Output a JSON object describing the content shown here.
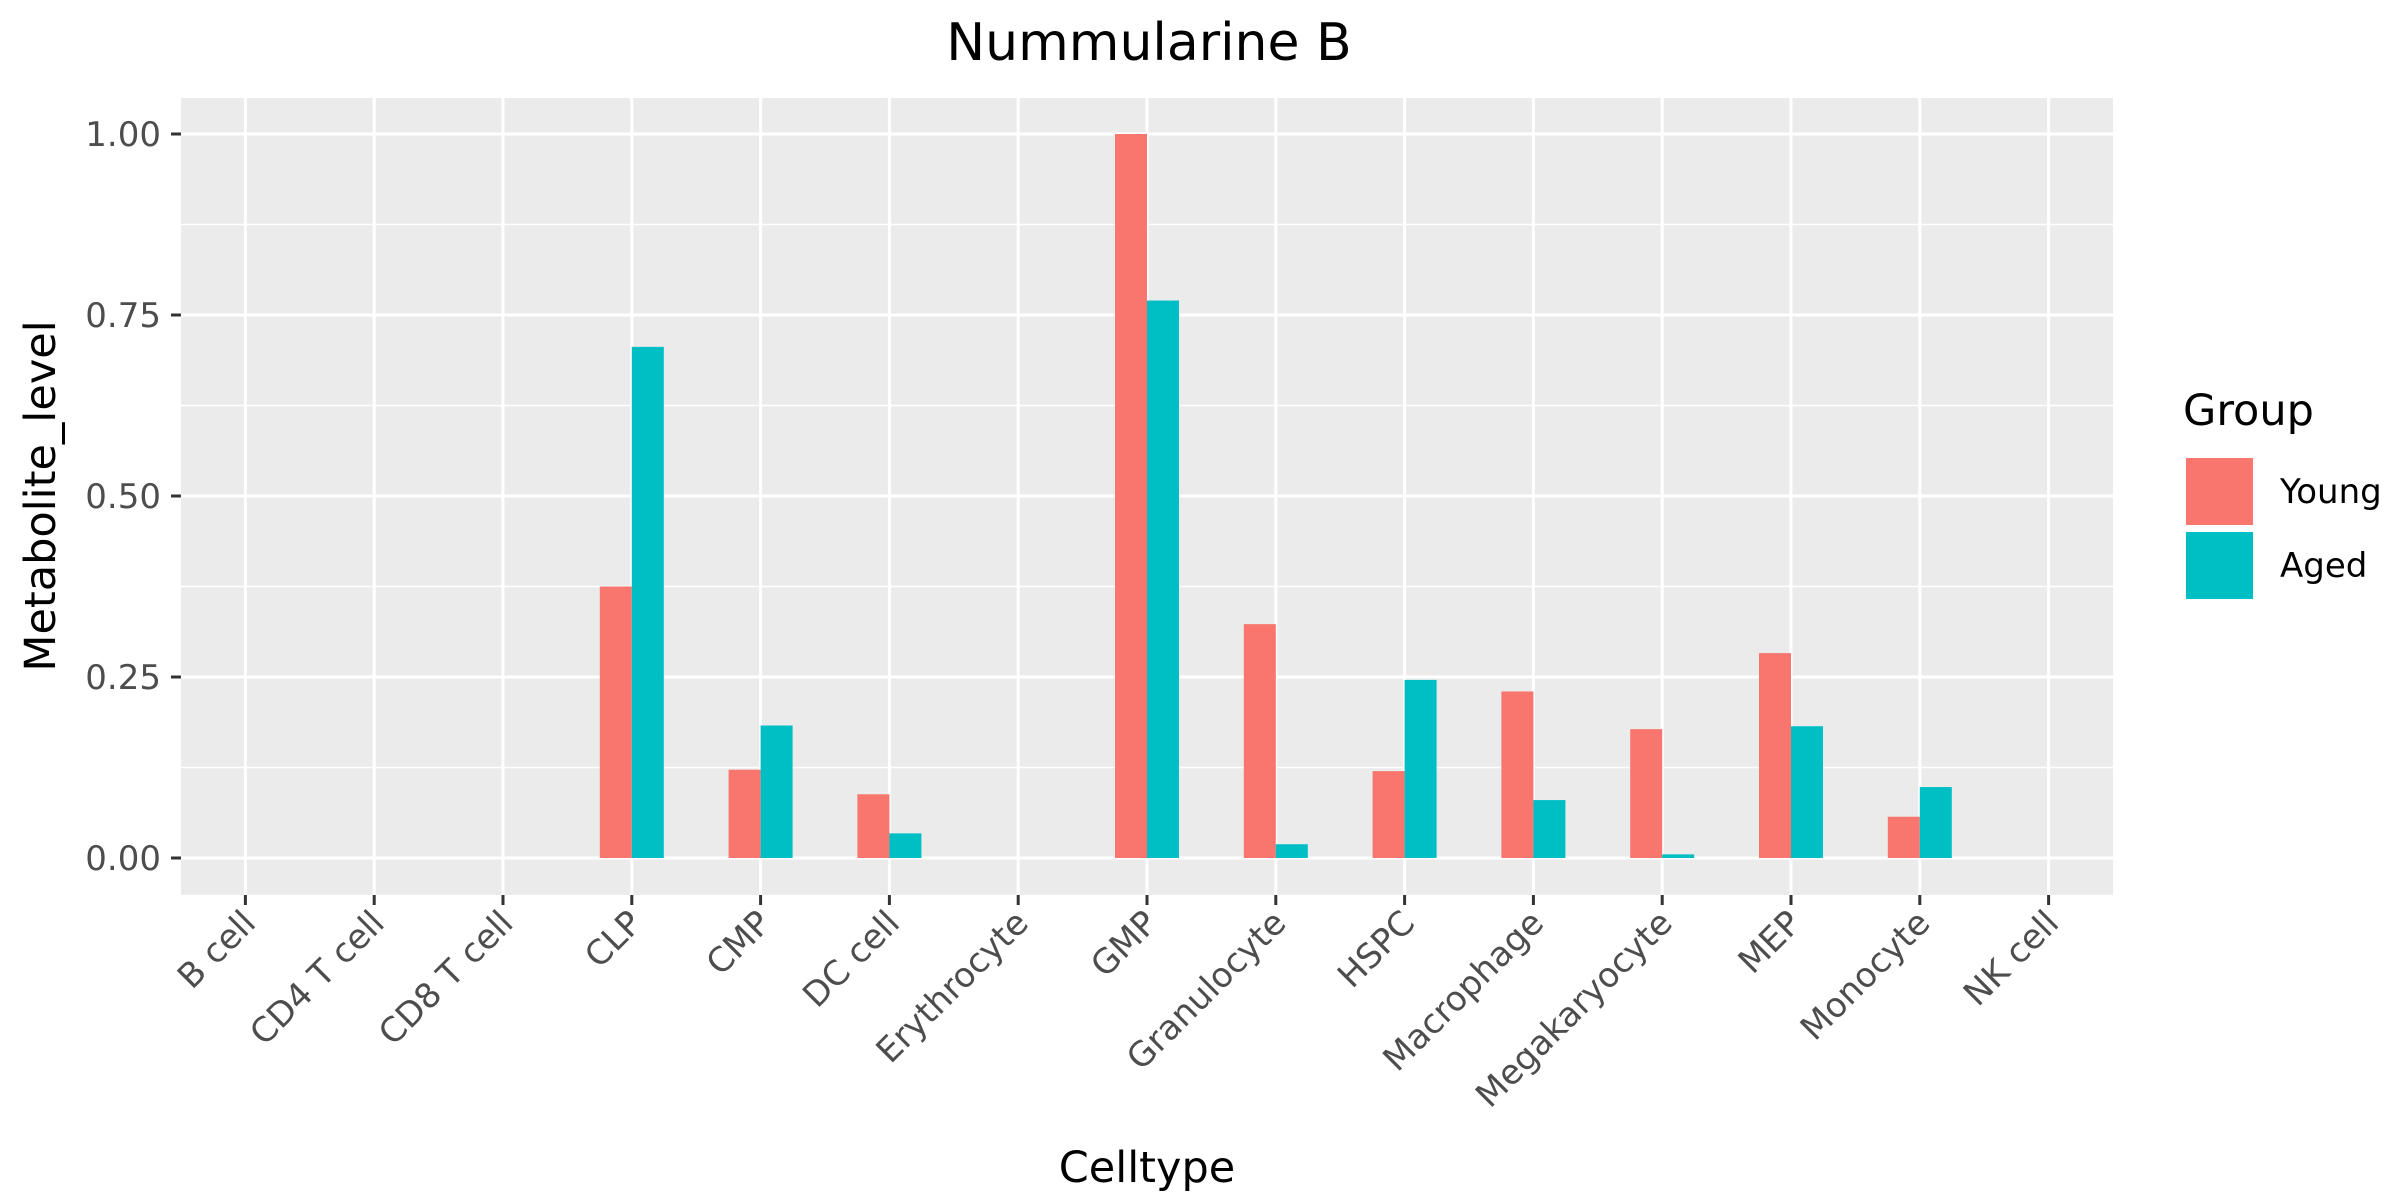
{
  "chart_data": {
    "type": "bar",
    "title": "Nummularine B",
    "xlabel": "Celltype",
    "ylabel": "Metabolite_level",
    "categories": [
      "B cell",
      "CD4 T cell",
      "CD8 T cell",
      "CLP",
      "CMP",
      "DC cell",
      "Erythrocyte",
      "GMP",
      "Granulocyte",
      "HSPC",
      "Macrophage",
      "Megakaryocyte",
      "MEP",
      "Monocyte",
      "NK cell"
    ],
    "series": [
      {
        "name": "Young",
        "color": "#F8766D",
        "values": [
          0,
          0,
          0,
          0.375,
          0.122,
          0.088,
          0,
          1.0,
          0.323,
          0.12,
          0.23,
          0.178,
          0.283,
          0.057,
          0
        ]
      },
      {
        "name": "Aged",
        "color": "#00BFC4",
        "values": [
          0,
          0,
          0,
          0.706,
          0.183,
          0.034,
          0,
          0.77,
          0.019,
          0.246,
          0.08,
          0.005,
          0.182,
          0.098,
          0
        ]
      }
    ],
    "yticks": [
      "0.00",
      "0.25",
      "0.50",
      "0.75",
      "1.00"
    ],
    "ylim": [
      -0.05,
      1.05
    ],
    "grid": true,
    "legend": {
      "title": "Group",
      "position": "right"
    }
  }
}
